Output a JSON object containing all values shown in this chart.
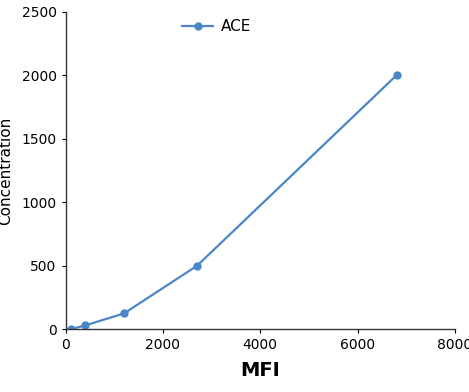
{
  "x": [
    100,
    400,
    1200,
    2700,
    6800
  ],
  "y": [
    0,
    30,
    125,
    500,
    2000
  ],
  "line_color": "#4a86c8",
  "marker": "o",
  "marker_size": 5,
  "marker_facecolor": "#4a86c8",
  "legend_label": "ACE",
  "xlabel": "MFI",
  "ylabel": "Concentration",
  "xlim": [
    0,
    8000
  ],
  "ylim": [
    0,
    2500
  ],
  "xticks": [
    0,
    2000,
    4000,
    6000,
    8000
  ],
  "yticks": [
    0,
    500,
    1000,
    1500,
    2000,
    2500
  ],
  "xlabel_fontsize": 14,
  "ylabel_fontsize": 11,
  "tick_fontsize": 10,
  "legend_fontsize": 11,
  "background_color": "#ffffff"
}
